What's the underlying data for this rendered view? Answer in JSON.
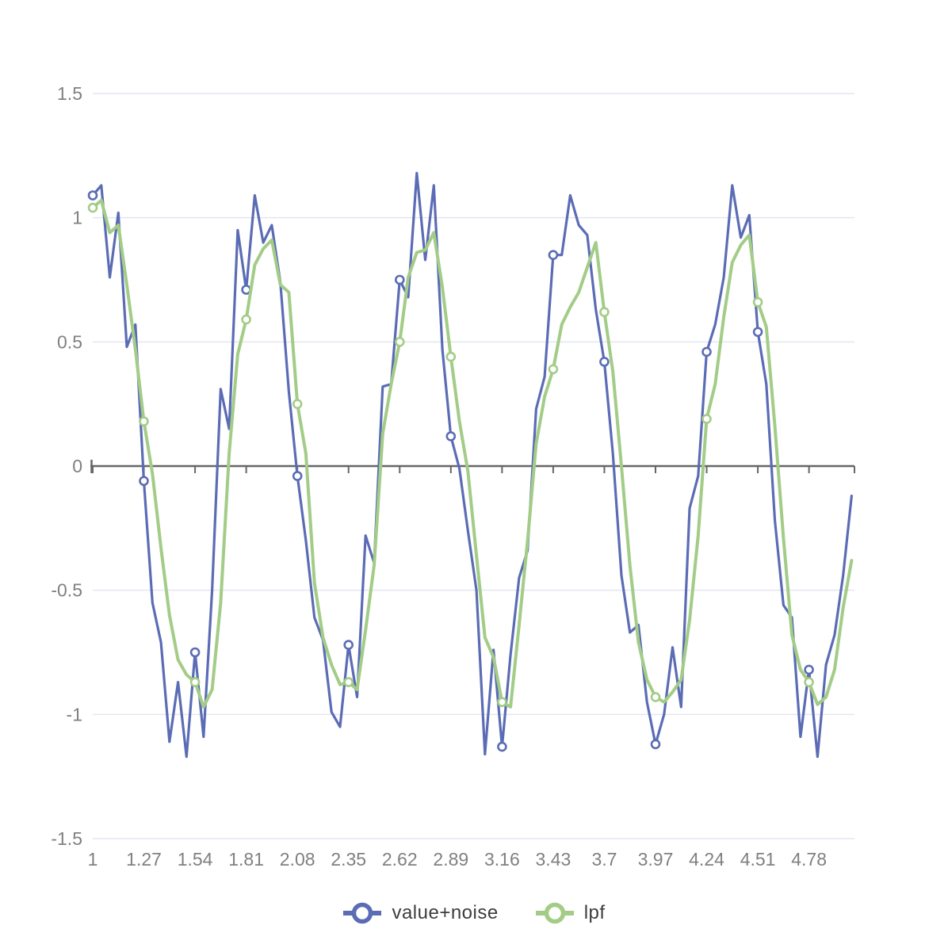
{
  "chart_data": {
    "type": "line",
    "title": "",
    "xlabel": "",
    "ylabel": "",
    "xlim": [
      1,
      5.02
    ],
    "ylim": [
      -1.5,
      1.5
    ],
    "grid": true,
    "legend_position": "bottom-center",
    "y_ticks": [
      1.5,
      1,
      0.5,
      0,
      -0.5,
      -1,
      -1.5
    ],
    "y_tick_labels": [
      "1.5",
      "1",
      "0.5",
      "0",
      "-0.5",
      "-1",
      "-1.5"
    ],
    "x_tick_values": [
      1,
      1.27,
      1.54,
      1.81,
      2.08,
      2.35,
      2.62,
      2.89,
      3.16,
      3.43,
      3.7,
      3.97,
      4.24,
      4.51,
      4.78
    ],
    "x_tick_labels": [
      "1",
      "1.27",
      "1.54",
      "1.81",
      "2.08",
      "2.35",
      "2.62",
      "2.89",
      "3.16",
      "3.43",
      "3.7",
      "3.97",
      "4.24",
      "4.51",
      "4.78"
    ],
    "marker_every": 6,
    "x": [
      1,
      1.045,
      1.09,
      1.135,
      1.18,
      1.225,
      1.27,
      1.315,
      1.36,
      1.405,
      1.45,
      1.495,
      1.54,
      1.585,
      1.63,
      1.675,
      1.72,
      1.765,
      1.81,
      1.855,
      1.9,
      1.945,
      1.99,
      2.035,
      2.08,
      2.125,
      2.17,
      2.215,
      2.26,
      2.305,
      2.35,
      2.395,
      2.44,
      2.485,
      2.53,
      2.575,
      2.62,
      2.665,
      2.71,
      2.755,
      2.8,
      2.845,
      2.89,
      2.935,
      2.98,
      3.025,
      3.07,
      3.115,
      3.16,
      3.205,
      3.25,
      3.295,
      3.34,
      3.385,
      3.43,
      3.475,
      3.52,
      3.565,
      3.61,
      3.655,
      3.7,
      3.745,
      3.79,
      3.835,
      3.88,
      3.925,
      3.97,
      4.015,
      4.06,
      4.105,
      4.15,
      4.195,
      4.24,
      4.285,
      4.33,
      4.375,
      4.42,
      4.465,
      4.51,
      4.555,
      4.6,
      4.645,
      4.69,
      4.735,
      4.78,
      4.825,
      4.87,
      4.915,
      4.96,
      5.005
    ],
    "series": [
      {
        "name": "value+noise",
        "color": "#5b6cb5",
        "line_width": 3.2,
        "values": [
          1.09,
          1.13,
          0.76,
          1.02,
          0.48,
          0.57,
          -0.06,
          -0.55,
          -0.71,
          -1.11,
          -0.87,
          -1.17,
          -0.75,
          -1.09,
          -0.5,
          0.31,
          0.15,
          0.95,
          0.71,
          1.09,
          0.9,
          0.97,
          0.74,
          0.3,
          -0.04,
          -0.3,
          -0.61,
          -0.7,
          -0.99,
          -1.05,
          -0.72,
          -0.93,
          -0.28,
          -0.39,
          0.32,
          0.33,
          0.75,
          0.68,
          1.18,
          0.83,
          1.13,
          0.47,
          0.12,
          -0.01,
          -0.26,
          -0.5,
          -1.16,
          -0.74,
          -1.13,
          -0.76,
          -0.45,
          -0.34,
          0.23,
          0.36,
          0.85,
          0.85,
          1.09,
          0.97,
          0.93,
          0.63,
          0.42,
          0.05,
          -0.44,
          -0.67,
          -0.64,
          -0.95,
          -1.12,
          -1.0,
          -0.73,
          -0.97,
          -0.17,
          -0.04,
          0.46,
          0.57,
          0.76,
          1.13,
          0.92,
          1.01,
          0.54,
          0.33,
          -0.22,
          -0.56,
          -0.61,
          -1.09,
          -0.82,
          -1.17,
          -0.8,
          -0.68,
          -0.44,
          -0.12
        ]
      },
      {
        "name": "lpf",
        "color": "#a3cc87",
        "line_width": 4,
        "values": [
          1.04,
          1.07,
          0.94,
          0.97,
          0.73,
          0.47,
          0.18,
          -0.03,
          -0.33,
          -0.6,
          -0.78,
          -0.84,
          -0.87,
          -0.97,
          -0.9,
          -0.55,
          0.05,
          0.45,
          0.59,
          0.81,
          0.875,
          0.91,
          0.73,
          0.7,
          0.25,
          0.05,
          -0.47,
          -0.69,
          -0.8,
          -0.88,
          -0.87,
          -0.9,
          -0.66,
          -0.4,
          0.13,
          0.33,
          0.5,
          0.76,
          0.86,
          0.87,
          0.94,
          0.72,
          0.44,
          0.18,
          -0.02,
          -0.36,
          -0.69,
          -0.77,
          -0.95,
          -0.97,
          -0.64,
          -0.3,
          0.09,
          0.28,
          0.39,
          0.57,
          0.64,
          0.7,
          0.8,
          0.9,
          0.62,
          0.38,
          0.0,
          -0.4,
          -0.71,
          -0.86,
          -0.93,
          -0.95,
          -0.91,
          -0.86,
          -0.62,
          -0.28,
          0.19,
          0.33,
          0.6,
          0.82,
          0.89,
          0.93,
          0.66,
          0.56,
          0.16,
          -0.29,
          -0.68,
          -0.82,
          -0.87,
          -0.96,
          -0.93,
          -0.82,
          -0.57,
          -0.38
        ]
      }
    ],
    "colors": {
      "grid": "#e3e6f0",
      "axis": "#666666",
      "tick_text": "#808080",
      "legend_text": "#3d3d3d",
      "marker_fill": "#ffffff",
      "background": "#ffffff"
    }
  }
}
